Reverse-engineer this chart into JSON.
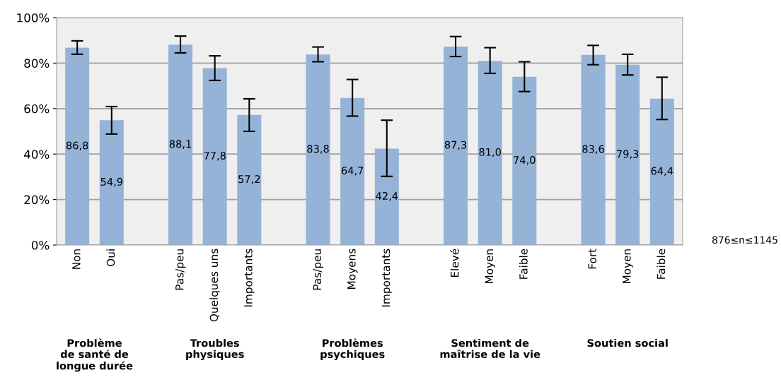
{
  "chart_data": {
    "type": "bar",
    "categories": [
      "Non",
      "Oui",
      null,
      "Pas/peu",
      "Quelques uns",
      "Importants",
      null,
      "Pas/peu",
      "Moyens",
      "Importants",
      null,
      "Elevé",
      "Moyen",
      "Faible",
      null,
      "Fort",
      "Moyen",
      "Faible"
    ],
    "values": [
      86.8,
      54.9,
      null,
      88.1,
      77.8,
      57.2,
      null,
      83.8,
      64.7,
      42.4,
      null,
      87.3,
      81.0,
      74.0,
      null,
      83.6,
      79.3,
      64.4
    ],
    "value_labels": [
      "86,8",
      "54,9",
      null,
      "88,1",
      "77,8",
      "57,2",
      null,
      "83,8",
      "64,7",
      "42,4",
      null,
      "87,3",
      "81,0",
      "74,0",
      null,
      "83,6",
      "79,3",
      "64,4"
    ],
    "errors": [
      [
        83.9,
        89.8
      ],
      [
        48.8,
        60.9
      ],
      null,
      [
        84.5,
        91.9
      ],
      [
        72.4,
        83.2
      ],
      [
        50.0,
        64.3
      ],
      null,
      [
        80.6,
        87.1
      ],
      [
        56.7,
        72.8
      ],
      [
        30.2,
        54.9
      ],
      null,
      [
        82.9,
        91.7
      ],
      [
        75.5,
        86.8
      ],
      [
        67.5,
        80.6
      ],
      null,
      [
        79.3,
        87.8
      ],
      [
        74.8,
        83.9
      ],
      [
        55.2,
        73.8
      ]
    ],
    "color": "#95b3d7",
    "ylim": [
      0,
      100
    ],
    "yticks": [
      {
        "value": 0,
        "label": "0%"
      },
      {
        "value": 20,
        "label": "20%"
      },
      {
        "value": 40,
        "label": "40%"
      },
      {
        "value": 60,
        "label": "60%"
      },
      {
        "value": 80,
        "label": "80%"
      },
      {
        "value": 100,
        "label": "100%"
      }
    ],
    "grid": "y",
    "annotations": [
      "Problème\nde santé de\nlongue durée",
      "Troubles\nphysiques",
      "Problèmes\npsychiques",
      "Sentiment de\nmaîtrise de la vie",
      "Soutien social",
      "876≤n≤1145"
    ]
  }
}
